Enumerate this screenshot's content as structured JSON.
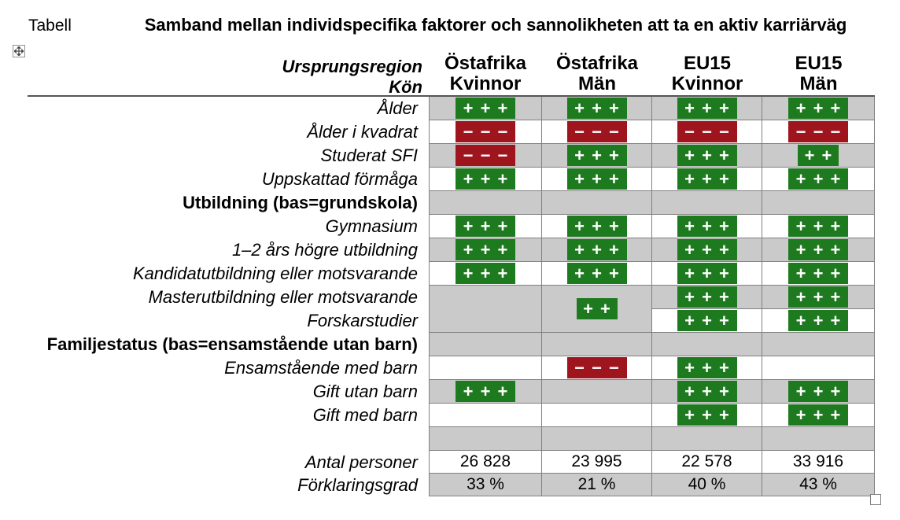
{
  "window": {
    "corner_label": "Tabell"
  },
  "title": "Samband mellan individspecifika faktorer och sannolikheten att ta en aktiv karriärväg",
  "header": {
    "row1_label": "Ursprungsregion",
    "row2_label": "Kön",
    "columns": [
      {
        "region": "Östafrika",
        "gender": "Kvinnor"
      },
      {
        "region": "Östafrika",
        "gender": "Män"
      },
      {
        "region": "EU15",
        "gender": "Kvinnor"
      },
      {
        "region": "EU15",
        "gender": "Män"
      }
    ]
  },
  "colors": {
    "positive": "#1E7A1E",
    "negative": "#9E151E",
    "shade": "#CACACA",
    "border": "#808080"
  },
  "table": {
    "rows": [
      {
        "label": "Ålder",
        "shaded": true,
        "cells": [
          "+++",
          "+++",
          "+++",
          "+++"
        ]
      },
      {
        "label": "Ålder i kvadrat",
        "shaded": false,
        "cells": [
          "---",
          "---",
          "---",
          "---"
        ]
      },
      {
        "label": "Studerat SFI",
        "shaded": true,
        "cells": [
          "---",
          "+++",
          "+++",
          "++"
        ]
      },
      {
        "label": "Uppskattad förmåga",
        "shaded": false,
        "cells": [
          "+++",
          "+++",
          "+++",
          "+++"
        ]
      },
      {
        "label": "Utbildning (bas=grundskola)",
        "bold": true,
        "shaded": true,
        "cells": [
          "",
          "",
          "",
          ""
        ]
      },
      {
        "label": "Gymnasium",
        "shaded": false,
        "cells": [
          "+++",
          "+++",
          "+++",
          "+++"
        ]
      },
      {
        "label": "1–2 års högre utbildning",
        "shaded": true,
        "cells": [
          "+++",
          "+++",
          "+++",
          "+++"
        ]
      },
      {
        "label": "Kandidatutbildning eller motsvarande",
        "shaded": false,
        "cells": [
          "+++",
          "+++",
          "+++",
          "+++"
        ]
      },
      {
        "label": "Masterutbildning eller motsvarande",
        "shaded": true,
        "cells": [
          {
            "v": "",
            "span": 2
          },
          {
            "v": "++",
            "span": 2
          },
          "+++",
          "+++"
        ]
      },
      {
        "label": "Forskarstudier",
        "shaded": false,
        "cells": [
          null,
          null,
          "+++",
          "+++"
        ]
      },
      {
        "label": "Familjestatus (bas=ensamstående utan barn)",
        "bold": true,
        "shaded": true,
        "cells": [
          "",
          "",
          "",
          ""
        ]
      },
      {
        "label": "Ensamstående med barn",
        "shaded": false,
        "cells": [
          "",
          "---",
          "+++",
          ""
        ]
      },
      {
        "label": "Gift utan barn",
        "shaded": true,
        "cells": [
          "+++",
          "",
          "+++",
          "+++"
        ]
      },
      {
        "label": "Gift med barn",
        "shaded": false,
        "cells": [
          "",
          "",
          "+++",
          "+++"
        ]
      },
      {
        "label": "",
        "shaded": true,
        "cells": [
          "",
          "",
          "",
          ""
        ]
      },
      {
        "label": "Antal personer",
        "shaded": false,
        "text": true,
        "cells": [
          "26 828",
          "23 995",
          "22 578",
          "33 916"
        ]
      },
      {
        "label": "Förklaringsgrad",
        "shaded": true,
        "text": true,
        "cells": [
          "33 %",
          "21 %",
          "40 %",
          "43 %"
        ]
      }
    ]
  }
}
